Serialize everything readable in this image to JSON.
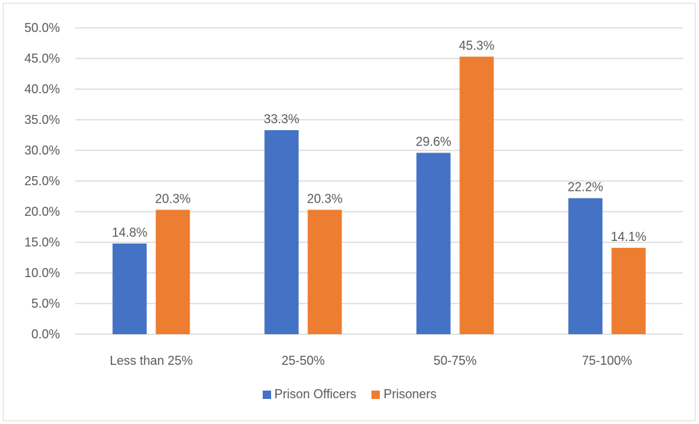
{
  "chart_data": {
    "type": "bar",
    "title": "",
    "xlabel": "",
    "ylabel": "",
    "categories": [
      "Less than 25%",
      "25-50%",
      "50-75%",
      "75-100%"
    ],
    "series": [
      {
        "name": "Prison Officers",
        "color": "#4472c4",
        "values": [
          14.8,
          33.3,
          29.6,
          22.2
        ],
        "labels": [
          "14.8%",
          "33.3%",
          "29.6%",
          "22.2%"
        ]
      },
      {
        "name": "Prisoners",
        "color": "#ed7d31",
        "values": [
          20.3,
          20.3,
          45.3,
          14.1
        ],
        "labels": [
          "20.3%",
          "20.3%",
          "45.3%",
          "14.1%"
        ]
      }
    ],
    "ylim": [
      0,
      50
    ],
    "yticks": [
      "0.0%",
      "5.0%",
      "10.0%",
      "15.0%",
      "20.0%",
      "25.0%",
      "30.0%",
      "35.0%",
      "40.0%",
      "45.0%",
      "50.0%"
    ],
    "grid": true,
    "legend": "bottom"
  }
}
